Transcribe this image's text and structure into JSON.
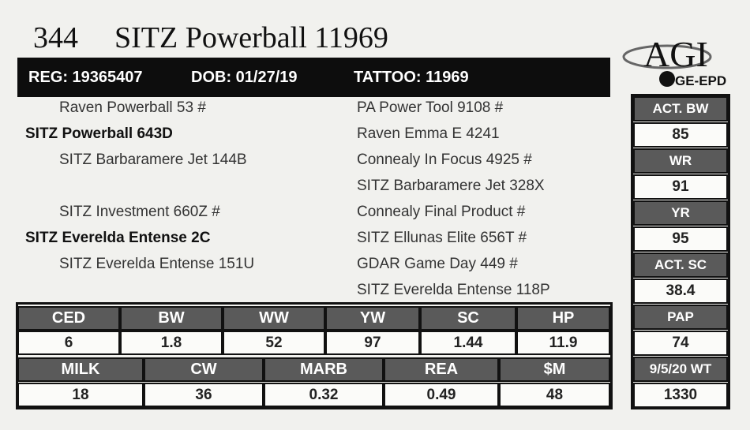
{
  "header": {
    "lot": "344",
    "title": "SITZ Powerball 11969",
    "reg": "REG: 19365407",
    "dob": "DOB: 01/27/19",
    "tattoo": "TATTOO: 11969"
  },
  "logo": {
    "brand": "AGI",
    "sub": "GE-EPD"
  },
  "pedigree": {
    "left": [
      "Raven Powerball 53 #",
      "SITZ Powerball 643D",
      "SITZ Barbaramere Jet 144B",
      null,
      "SITZ Investment 660Z #",
      "SITZ Everelda Entense 2C",
      "SITZ Everelda Entense 151U",
      null
    ],
    "right": [
      "PA Power Tool 9108 #",
      "Raven Emma E 4241",
      "Connealy In Focus 4925 #",
      "SITZ Barbaramere Jet 328X",
      "Connealy Final Product #",
      "SITZ Ellunas Elite 656T #",
      "GDAR Game Day 449 #",
      "SITZ Everelda Entense 118P"
    ]
  },
  "side": [
    {
      "label": "ACT. BW",
      "value": "85"
    },
    {
      "label": "WR",
      "value": "91"
    },
    {
      "label": "YR",
      "value": "95"
    },
    {
      "label": "ACT. SC",
      "value": "38.4"
    },
    {
      "label": "PAP",
      "value": "74"
    },
    {
      "label": "9/5/20 WT",
      "value": "1330"
    }
  ],
  "epd": [
    [
      {
        "label": "CED",
        "value": "6"
      },
      {
        "label": "BW",
        "value": "1.8"
      },
      {
        "label": "WW",
        "value": "52"
      },
      {
        "label": "YW",
        "value": "97"
      },
      {
        "label": "SC",
        "value": "1.44"
      },
      {
        "label": "HP",
        "value": "11.9"
      }
    ],
    [
      {
        "label": "MILK",
        "value": "18"
      },
      {
        "label": "CW",
        "value": "36"
      },
      {
        "label": "MARB",
        "value": "0.32"
      },
      {
        "label": "REA",
        "value": "0.49"
      },
      {
        "label": "$M",
        "value": "48"
      }
    ]
  ]
}
